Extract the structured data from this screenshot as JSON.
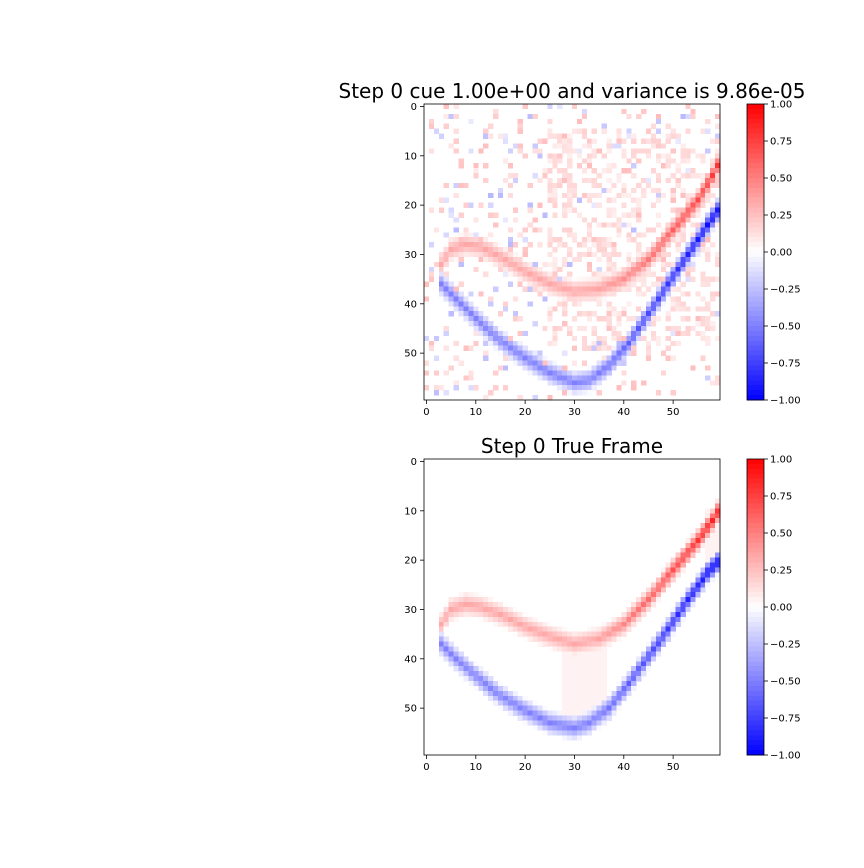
{
  "chart_data": [
    {
      "type": "heatmap",
      "title": "Step 0 cue 1.00e+00 and variance is 9.86e-05",
      "grid_size": 60,
      "x_ticks": [
        0,
        10,
        20,
        30,
        40,
        50
      ],
      "y_ticks": [
        0,
        10,
        20,
        30,
        40,
        50
      ],
      "xlim": [
        -0.5,
        59.5
      ],
      "ylim": [
        59.5,
        -0.5
      ],
      "colorbar": {
        "cmap": "bwr",
        "vmin": -1.0,
        "vmax": 1.0,
        "ticks": [
          "1.00",
          "0.75",
          "0.50",
          "0.25",
          "0.00",
          "−0.25",
          "−0.50",
          "−0.75",
          "−1.00"
        ]
      },
      "red_curve": {
        "value": 0.35,
        "peak_value": 0.8,
        "points": [
          [
            3,
            32
          ],
          [
            5,
            29
          ],
          [
            8,
            28
          ],
          [
            11,
            28.5
          ],
          [
            15,
            30.5
          ],
          [
            20,
            33.5
          ],
          [
            25,
            36
          ],
          [
            30,
            37.5
          ],
          [
            35,
            37
          ],
          [
            40,
            35
          ],
          [
            45,
            31
          ],
          [
            50,
            25
          ],
          [
            55,
            19
          ],
          [
            58,
            14
          ],
          [
            59.5,
            11
          ]
        ]
      },
      "blue_curve": {
        "value": -0.5,
        "peak_value": -1.0,
        "points": [
          [
            3,
            36
          ],
          [
            6,
            39
          ],
          [
            10,
            43
          ],
          [
            15,
            47.5
          ],
          [
            20,
            51
          ],
          [
            25,
            54
          ],
          [
            30,
            56
          ],
          [
            33,
            55.5
          ],
          [
            37,
            52.5
          ],
          [
            41,
            48
          ],
          [
            45,
            42
          ],
          [
            49,
            36
          ],
          [
            53,
            30
          ],
          [
            57,
            24
          ],
          [
            59.5,
            20.5
          ]
        ]
      },
      "noise": "sparse faint red and blue pixels scattered across the field"
    },
    {
      "type": "heatmap",
      "title": "Step 0 True Frame",
      "grid_size": 60,
      "x_ticks": [
        0,
        10,
        20,
        30,
        40,
        50
      ],
      "y_ticks": [
        0,
        10,
        20,
        30,
        40,
        50
      ],
      "xlim": [
        -0.5,
        59.5
      ],
      "ylim": [
        59.5,
        -0.5
      ],
      "colorbar": {
        "cmap": "bwr",
        "vmin": -1.0,
        "vmax": 1.0,
        "ticks": [
          "1.00",
          "0.75",
          "0.50",
          "0.25",
          "0.00",
          "−0.25",
          "−0.50",
          "−0.75",
          "−1.00"
        ]
      },
      "red_curve": {
        "value": 0.35,
        "peak_value": 0.9,
        "points": [
          [
            3,
            33
          ],
          [
            5,
            30
          ],
          [
            8,
            29
          ],
          [
            11,
            29.5
          ],
          [
            15,
            31
          ],
          [
            20,
            33.5
          ],
          [
            25,
            35.5
          ],
          [
            30,
            37
          ],
          [
            35,
            36
          ],
          [
            40,
            33
          ],
          [
            45,
            28
          ],
          [
            50,
            22
          ],
          [
            55,
            16
          ],
          [
            58,
            12
          ],
          [
            59.5,
            9.5
          ]
        ]
      },
      "blue_curve": {
        "value": -0.5,
        "peak_value": -1.0,
        "points": [
          [
            3,
            37
          ],
          [
            6,
            40
          ],
          [
            10,
            43.5
          ],
          [
            15,
            47.5
          ],
          [
            20,
            50.5
          ],
          [
            25,
            53
          ],
          [
            30,
            54
          ],
          [
            33,
            53
          ],
          [
            37,
            50
          ],
          [
            41,
            45
          ],
          [
            45,
            39.5
          ],
          [
            49,
            34
          ],
          [
            53,
            28
          ],
          [
            57,
            22.5
          ],
          [
            59.5,
            20
          ]
        ]
      },
      "shaded_regions": [
        {
          "x": [
            28,
            37
          ],
          "y": [
            38,
            52
          ],
          "value": 0.05
        },
        {
          "x": [
            57,
            59.5
          ],
          "y": [
            10,
            23
          ],
          "value": 0.05
        }
      ]
    }
  ]
}
